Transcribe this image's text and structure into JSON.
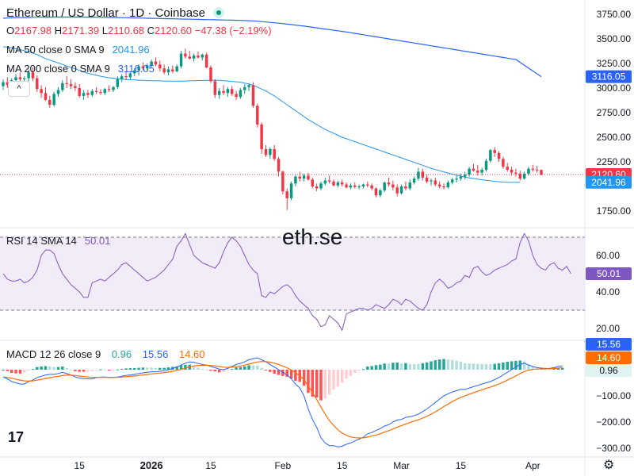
{
  "header": {
    "title": "Ethereum / US Dollar · 1D · Coinbase",
    "ohlc": {
      "o_label": "O",
      "o": "2167.98",
      "h_label": "H",
      "h": "2171.39",
      "l_label": "L",
      "l": "2110.68",
      "c_label": "C",
      "c": "2120.60",
      "change": "−47.38 (−2.19%)"
    },
    "ma50": {
      "label": "MA 50 close 0 SMA 9",
      "value": "2041.96"
    },
    "ma200": {
      "label": "MA 200 close 0 SMA 9",
      "value": "3116.05"
    },
    "collapse_icon": "^"
  },
  "watermark": "eth.se",
  "logo": "17",
  "gear_icon": "⚙",
  "colors": {
    "up": "#089981",
    "down": "#f23645",
    "ma50": "#2196f3",
    "ma200": "#2962ff",
    "rsi": "#7e57c2",
    "macd": "#2962ff",
    "signal": "#ff6d00"
  },
  "price_axis": {
    "ticks": [
      "3750.00",
      "3500.00",
      "3250.00",
      "3000.00",
      "2750.00",
      "2500.00",
      "2250.00",
      "1750.00"
    ],
    "tick_values": [
      3750,
      3500,
      3250,
      3000,
      2750,
      2500,
      2250,
      1750
    ],
    "labels": {
      "ma200": "3116.05",
      "price": "2120.60",
      "ma50": "2041.96"
    }
  },
  "rsi": {
    "label": "RSI 14 SMA 14",
    "value": "50.01",
    "ticks": [
      "60.00",
      "40.00",
      "20.00"
    ],
    "tick_values": [
      60,
      40,
      20
    ],
    "band_upper": 70,
    "band_lower": 30,
    "values": [
      50,
      47,
      46,
      46,
      47,
      45,
      46,
      48,
      52,
      60,
      63,
      63,
      61,
      55,
      50,
      47,
      44,
      42,
      40,
      37,
      37,
      45,
      46,
      47,
      46,
      48,
      50,
      52,
      55,
      56,
      54,
      52,
      50,
      48,
      46,
      47,
      48,
      50,
      52,
      55,
      58,
      65,
      68,
      72,
      66,
      60,
      58,
      56,
      55,
      54,
      53,
      56,
      62,
      67,
      70,
      68,
      65,
      60,
      55,
      52,
      50,
      38,
      37,
      40,
      39,
      41,
      43,
      44,
      42,
      38,
      35,
      33,
      31,
      27,
      25,
      21,
      22,
      27,
      25,
      23,
      19,
      28,
      29,
      30,
      31,
      31,
      30,
      31,
      33,
      32,
      31,
      33,
      36,
      35,
      33,
      36,
      35,
      33,
      31,
      30,
      33,
      40,
      45,
      47,
      45,
      42,
      43,
      45,
      46,
      49,
      48,
      53,
      54,
      51,
      49,
      50,
      52,
      53,
      54,
      55,
      57,
      58,
      67,
      72,
      68,
      60,
      55,
      53,
      52,
      55,
      56,
      53,
      52,
      54,
      50
    ]
  },
  "macd": {
    "label": "MACD 12 26 close 9",
    "hist_value": "0.96",
    "macd_value": "15.56",
    "signal_value": "14.60",
    "ticks": [
      "−100.00",
      "−200.00",
      "−300.00"
    ],
    "tick_values": [
      -100,
      -200,
      -300
    ],
    "macd_values": [
      -28,
      -35,
      -45,
      -50,
      -55,
      -55,
      -45,
      -40,
      -30,
      -25,
      -20,
      -18,
      -18,
      -15,
      -10,
      -15,
      -20,
      -28,
      -32,
      -34,
      -35,
      -35,
      -30,
      -28,
      -28,
      -30,
      -30,
      -28,
      -25,
      -22,
      -20,
      -18,
      -15,
      -12,
      -10,
      -8,
      -8,
      -6,
      -4,
      0,
      5,
      10,
      18,
      25,
      30,
      28,
      24,
      20,
      18,
      12,
      8,
      2,
      0,
      5,
      12,
      20,
      24,
      30,
      38,
      42,
      45,
      38,
      30,
      20,
      10,
      0,
      -10,
      -20,
      -35,
      -55,
      -70,
      -100,
      -150,
      -190,
      -220,
      -260,
      -280,
      -290,
      -290,
      -295,
      -292,
      -285,
      -280,
      -272,
      -265,
      -258,
      -245,
      -240,
      -232,
      -225,
      -215,
      -210,
      -200,
      -192,
      -190,
      -182,
      -180,
      -175,
      -170,
      -160,
      -150,
      -138,
      -125,
      -112,
      -100,
      -92,
      -85,
      -80,
      -75,
      -75,
      -70,
      -65,
      -60,
      -55,
      -50,
      -45,
      -38,
      -30,
      -20,
      -10,
      0,
      10,
      20,
      25,
      18,
      12,
      8,
      6,
      5,
      5,
      8,
      12,
      15
    ]
  },
  "x_axis": {
    "ticks": [
      {
        "label": "15",
        "date": "2025-12-15"
      },
      {
        "label": "2026",
        "date": "2026-01-01"
      },
      {
        "label": "15",
        "date": "2026-01-15"
      },
      {
        "label": "Feb",
        "date": "2026-02-01"
      },
      {
        "label": "15",
        "date": "2026-02-15"
      },
      {
        "label": "Mar",
        "date": "2026-03-01"
      },
      {
        "label": "15",
        "date": "2026-03-15"
      },
      {
        "label": "Apr",
        "date": "2026-04-01"
      }
    ]
  },
  "chart_data": {
    "type": "candlestick",
    "symbol": "Ethereum / US Dollar",
    "interval": "1D",
    "exchange": "Coinbase",
    "start_date": "2025-11-27",
    "candles": [
      [
        3020,
        3090,
        2980,
        3060
      ],
      [
        3060,
        3110,
        3000,
        3030
      ],
      [
        3030,
        3100,
        2990,
        3080
      ],
      [
        3080,
        3140,
        3050,
        3110
      ],
      [
        3110,
        3160,
        3070,
        3090
      ],
      [
        3090,
        3120,
        3050,
        3100
      ],
      [
        3100,
        3190,
        3060,
        3160
      ],
      [
        3160,
        3210,
        3070,
        3100
      ],
      [
        3100,
        3130,
        2960,
        2990
      ],
      [
        2990,
        3030,
        2900,
        2950
      ],
      [
        2950,
        3010,
        2870,
        2880
      ],
      [
        2880,
        2920,
        2800,
        2830
      ],
      [
        2830,
        2960,
        2810,
        2940
      ],
      [
        2940,
        3010,
        2910,
        2980
      ],
      [
        2980,
        3080,
        2960,
        3050
      ],
      [
        3050,
        3120,
        3000,
        3040
      ],
      [
        3040,
        3090,
        2990,
        3020
      ],
      [
        3020,
        3060,
        2970,
        3000
      ],
      [
        3000,
        3040,
        2900,
        2920
      ],
      [
        2920,
        2980,
        2880,
        2950
      ],
      [
        2950,
        2980,
        2900,
        2930
      ],
      [
        2930,
        2990,
        2910,
        2970
      ],
      [
        2970,
        3010,
        2940,
        2960
      ],
      [
        2960,
        2990,
        2930,
        2950
      ],
      [
        2950,
        3000,
        2930,
        2990
      ],
      [
        2990,
        3030,
        2960,
        2980
      ],
      [
        2980,
        3020,
        2960,
        3010
      ],
      [
        3010,
        3120,
        2990,
        3090
      ],
      [
        3090,
        3140,
        3060,
        3120
      ],
      [
        3120,
        3170,
        3080,
        3110
      ],
      [
        3110,
        3160,
        3090,
        3150
      ],
      [
        3150,
        3200,
        3120,
        3180
      ],
      [
        3180,
        3240,
        3130,
        3220
      ],
      [
        3220,
        3260,
        3180,
        3200
      ],
      [
        3200,
        3250,
        3170,
        3230
      ],
      [
        3230,
        3290,
        3200,
        3270
      ],
      [
        3270,
        3310,
        3220,
        3240
      ],
      [
        3240,
        3280,
        3170,
        3200
      ],
      [
        3200,
        3240,
        3140,
        3160
      ],
      [
        3160,
        3220,
        3130,
        3190
      ],
      [
        3190,
        3230,
        3150,
        3170
      ],
      [
        3170,
        3240,
        3160,
        3220
      ],
      [
        3220,
        3380,
        3200,
        3350
      ],
      [
        3350,
        3400,
        3300,
        3320
      ],
      [
        3320,
        3380,
        3290,
        3300
      ],
      [
        3300,
        3350,
        3270,
        3330
      ],
      [
        3330,
        3370,
        3300,
        3310
      ],
      [
        3310,
        3350,
        3280,
        3340
      ],
      [
        3340,
        3360,
        3200,
        3210
      ],
      [
        3210,
        3230,
        3050,
        3070
      ],
      [
        3070,
        3090,
        2900,
        2930
      ],
      [
        2930,
        3000,
        2890,
        2970
      ],
      [
        2970,
        3030,
        2930,
        2950
      ],
      [
        2950,
        3010,
        2910,
        2990
      ],
      [
        2990,
        3020,
        2920,
        2940
      ],
      [
        2940,
        2970,
        2880,
        2910
      ],
      [
        2910,
        3000,
        2890,
        2980
      ],
      [
        2980,
        3040,
        2940,
        3010
      ],
      [
        3010,
        3050,
        2970,
        3030
      ],
      [
        3030,
        3060,
        2800,
        2820
      ],
      [
        2820,
        2840,
        2600,
        2630
      ],
      [
        2630,
        2650,
        2330,
        2380
      ],
      [
        2380,
        2420,
        2300,
        2320
      ],
      [
        2320,
        2400,
        2280,
        2380
      ],
      [
        2380,
        2420,
        2260,
        2280
      ],
      [
        2280,
        2300,
        2100,
        2150
      ],
      [
        2150,
        2160,
        1920,
        1950
      ],
      [
        1950,
        1980,
        1760,
        1880
      ],
      [
        1880,
        2050,
        1860,
        2030
      ],
      [
        2030,
        2120,
        2000,
        2100
      ],
      [
        2100,
        2150,
        2050,
        2080
      ],
      [
        2080,
        2130,
        2050,
        2110
      ],
      [
        2110,
        2140,
        2060,
        2070
      ],
      [
        2070,
        2090,
        1980,
        2000
      ],
      [
        2000,
        2030,
        1950,
        1980
      ],
      [
        1980,
        2050,
        1960,
        2030
      ],
      [
        2030,
        2090,
        2010,
        2060
      ],
      [
        2060,
        2110,
        2030,
        2050
      ],
      [
        2050,
        2070,
        2000,
        2010
      ],
      [
        2010,
        2060,
        1990,
        2040
      ],
      [
        2040,
        2070,
        2000,
        2020
      ],
      [
        2020,
        2040,
        1980,
        1990
      ],
      [
        1990,
        2030,
        1970,
        2010
      ],
      [
        2010,
        2040,
        1980,
        1995
      ],
      [
        1995,
        2020,
        1970,
        2000
      ],
      [
        2000,
        2030,
        1980,
        2020
      ],
      [
        2020,
        2050,
        1990,
        2010
      ],
      [
        2010,
        2030,
        1960,
        1980
      ],
      [
        1980,
        1990,
        1890,
        1910
      ],
      [
        1910,
        1980,
        1890,
        1960
      ],
      [
        1960,
        2050,
        1940,
        2040
      ],
      [
        2040,
        2090,
        2000,
        2020
      ],
      [
        2020,
        2060,
        1960,
        1990
      ],
      [
        1990,
        2020,
        1900,
        1930
      ],
      [
        1930,
        2020,
        1920,
        2000
      ],
      [
        2000,
        2050,
        1960,
        1980
      ],
      [
        1980,
        2070,
        1960,
        2040
      ],
      [
        2040,
        2100,
        2020,
        2080
      ],
      [
        2080,
        2190,
        2060,
        2150
      ],
      [
        2150,
        2180,
        2060,
        2090
      ],
      [
        2090,
        2120,
        2030,
        2050
      ],
      [
        2050,
        2080,
        2010,
        2060
      ],
      [
        2060,
        2090,
        2000,
        2020
      ],
      [
        2020,
        2050,
        1980,
        2000
      ],
      [
        2000,
        2030,
        1970,
        1990
      ],
      [
        1990,
        2060,
        1980,
        2040
      ],
      [
        2040,
        2090,
        2020,
        2070
      ],
      [
        2070,
        2110,
        2040,
        2080
      ],
      [
        2080,
        2130,
        2060,
        2100
      ],
      [
        2100,
        2150,
        2070,
        2120
      ],
      [
        2120,
        2200,
        2100,
        2180
      ],
      [
        2180,
        2230,
        2150,
        2160
      ],
      [
        2160,
        2220,
        2110,
        2140
      ],
      [
        2140,
        2190,
        2110,
        2170
      ],
      [
        2170,
        2280,
        2150,
        2260
      ],
      [
        2260,
        2380,
        2240,
        2370
      ],
      [
        2370,
        2400,
        2300,
        2340
      ],
      [
        2340,
        2360,
        2250,
        2280
      ],
      [
        2280,
        2300,
        2180,
        2200
      ],
      [
        2200,
        2240,
        2150,
        2170
      ],
      [
        2170,
        2200,
        2110,
        2140
      ],
      [
        2140,
        2180,
        2100,
        2130
      ],
      [
        2130,
        2160,
        2060,
        2080
      ],
      [
        2080,
        2150,
        2070,
        2130
      ],
      [
        2130,
        2200,
        2110,
        2180
      ],
      [
        2180,
        2220,
        2150,
        2170
      ],
      [
        2170,
        2210,
        2140,
        2168
      ],
      [
        2167.98,
        2171.39,
        2110.68,
        2120.6
      ]
    ],
    "ma50": [
      3420,
      3415,
      3410,
      3400,
      3390,
      3380,
      3370,
      3355,
      3340,
      3320,
      3300,
      3285,
      3270,
      3255,
      3240,
      3225,
      3210,
      3195,
      3180,
      3165,
      3150,
      3140,
      3130,
      3120,
      3112,
      3105,
      3100,
      3095,
      3090,
      3087,
      3084,
      3082,
      3080,
      3078,
      3076,
      3075,
      3074,
      3073,
      3072,
      3071,
      3070,
      3070,
      3071,
      3072,
      3073,
      3075,
      3076,
      3077,
      3078,
      3079,
      3080,
      3078,
      3075,
      3072,
      3068,
      3064,
      3060,
      3050,
      3040,
      3030,
      3010,
      2990,
      2970,
      2945,
      2920,
      2890,
      2860,
      2830,
      2800,
      2770,
      2740,
      2710,
      2680,
      2655,
      2630,
      2605,
      2580,
      2560,
      2540,
      2520,
      2500,
      2485,
      2470,
      2455,
      2440,
      2425,
      2410,
      2395,
      2380,
      2365,
      2350,
      2335,
      2320,
      2305,
      2290,
      2275,
      2260,
      2245,
      2230,
      2215,
      2200,
      2185,
      2172,
      2160,
      2148,
      2136,
      2125,
      2114,
      2104,
      2095,
      2087,
      2080,
      2074,
      2068,
      2062,
      2057,
      2052,
      2048,
      2045,
      2043,
      2042,
      2042,
      2041.96
    ],
    "ma200": [
      3710,
      3712,
      3714,
      3715,
      3716,
      3717,
      3718,
      3719,
      3720,
      3720,
      3721,
      3721,
      3722,
      3722,
      3722,
      3722,
      3722,
      3722,
      3722,
      3722,
      3721,
      3721,
      3720,
      3720,
      3719,
      3718,
      3718,
      3717,
      3716,
      3715,
      3714,
      3713,
      3712,
      3711,
      3710,
      3709,
      3708,
      3707,
      3706,
      3705,
      3704,
      3703,
      3702,
      3701,
      3700,
      3699,
      3698,
      3697,
      3696,
      3695,
      3694,
      3693,
      3692,
      3691,
      3690,
      3689,
      3688,
      3686,
      3684,
      3682,
      3680,
      3676,
      3672,
      3668,
      3664,
      3660,
      3655,
      3650,
      3645,
      3640,
      3635,
      3630,
      3624,
      3618,
      3612,
      3606,
      3600,
      3594,
      3588,
      3582,
      3576,
      3570,
      3563,
      3556,
      3549,
      3542,
      3535,
      3528,
      3521,
      3514,
      3507,
      3500,
      3493,
      3486,
      3479,
      3472,
      3465,
      3458,
      3451,
      3444,
      3437,
      3430,
      3423,
      3416,
      3409,
      3402,
      3395,
      3388,
      3381,
      3374,
      3367,
      3360,
      3353,
      3346,
      3339,
      3332,
      3325,
      3318,
      3311,
      3304,
      3297,
      3290,
      3116.05
    ]
  }
}
